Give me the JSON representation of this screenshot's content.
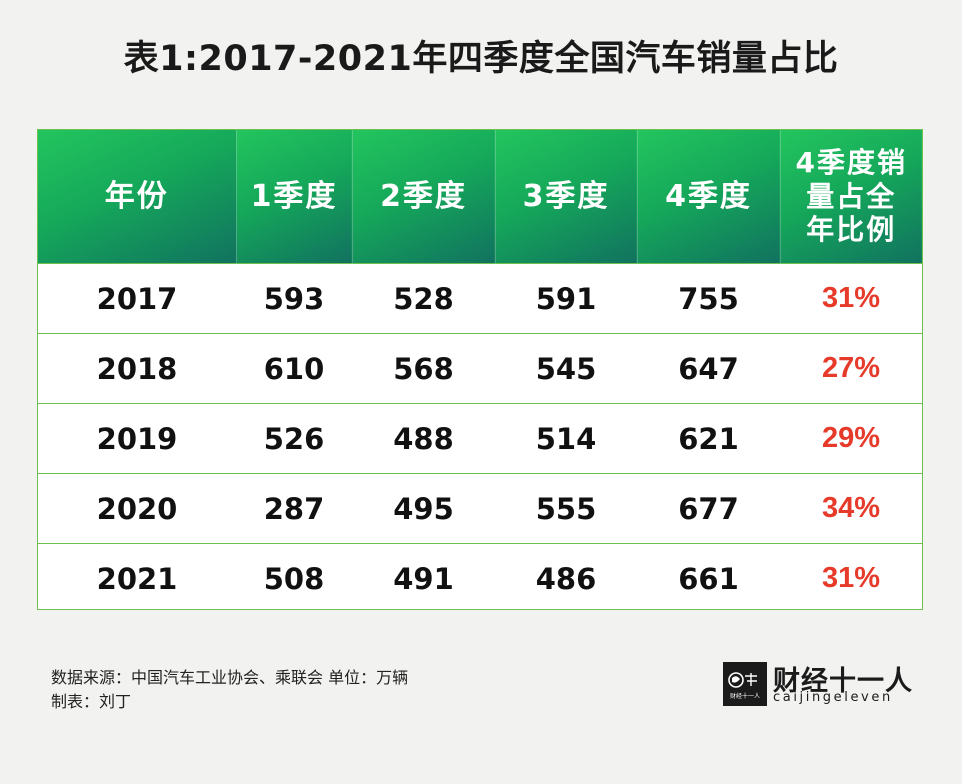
{
  "title": "表1:2017-2021年四季度全国汽车销量占比",
  "chart_data": {
    "type": "table",
    "title": "表1:2017-2021年四季度全国汽车销量占比",
    "columns": [
      "年份",
      "1季度",
      "2季度",
      "3季度",
      "4季度",
      "4季度销量占全年比例"
    ],
    "column_lines": [
      [
        "年份"
      ],
      [
        "1季度"
      ],
      [
        "2季度"
      ],
      [
        "3季度"
      ],
      [
        "4季度"
      ],
      [
        "4季度销",
        "量占全",
        "年比例"
      ]
    ],
    "rows": [
      [
        "2017",
        "593",
        "528",
        "591",
        "755",
        "31%"
      ],
      [
        "2018",
        "610",
        "568",
        "545",
        "647",
        "27%"
      ],
      [
        "2019",
        "526",
        "488",
        "514",
        "621",
        "29%"
      ],
      [
        "2020",
        "287",
        "495",
        "555",
        "677",
        "34%"
      ],
      [
        "2021",
        "508",
        "491",
        "486",
        "661",
        "31%"
      ]
    ],
    "colors": {
      "header_start": "#23c55e",
      "header_end": "#11725f",
      "header_text": "#ffffff",
      "border": "#6fbf4f",
      "percent_text": "#e63a2a"
    }
  },
  "footer": {
    "source": "数据来源：中国汽车工业协会、乘联会 单位：万辆",
    "author": "制表：刘丁"
  },
  "logo": {
    "name": "财经十一人",
    "sub": "caijingeleven",
    "box_text": "财经十一人"
  }
}
